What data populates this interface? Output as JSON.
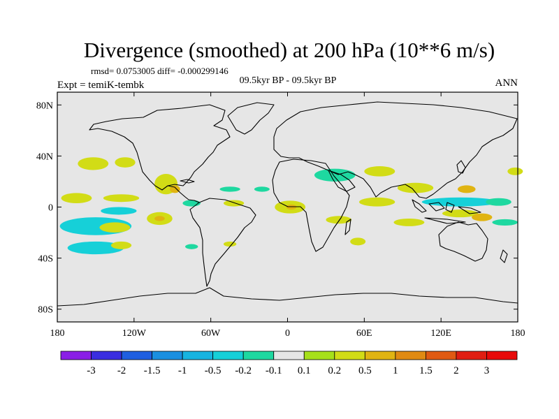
{
  "chart_data": {
    "type": "heatmap",
    "projection": "cylindrical-equidistant",
    "title": "Divergence (smoothed) at 200 hPa (10**6 m/s)",
    "stats": "rmsd= 0.0753005 diff= -0.000299146",
    "experiment": "Expt = temiK-tembk",
    "period": "09.5kyr BP - 09.5kyr BP",
    "season": "ANN",
    "lon_range": [
      -180,
      180
    ],
    "lat_range": [
      -90,
      90
    ],
    "x_ticks": [
      {
        "value": -180,
        "label": "180"
      },
      {
        "value": -120,
        "label": "120W"
      },
      {
        "value": -60,
        "label": "60W"
      },
      {
        "value": 0,
        "label": "0"
      },
      {
        "value": 60,
        "label": "60E"
      },
      {
        "value": 120,
        "label": "120E"
      },
      {
        "value": 180,
        "label": "180"
      }
    ],
    "y_ticks": [
      {
        "value": 80,
        "label": "80N"
      },
      {
        "value": 40,
        "label": "40N"
      },
      {
        "value": 0,
        "label": "0"
      },
      {
        "value": -40,
        "label": "40S"
      },
      {
        "value": -80,
        "label": "80S"
      }
    ],
    "colorbar": {
      "levels": [
        "-3",
        "-2",
        "-1.5",
        "-1",
        "-0.5",
        "-0.2",
        "-0.1",
        "0.1",
        "0.2",
        "0.5",
        "1",
        "1.5",
        "2",
        "3"
      ],
      "colors": [
        "#8a1ee6",
        "#3a2ee0",
        "#1f5fe0",
        "#1a8fe0",
        "#17b4e0",
        "#16d0d8",
        "#1ed8a0",
        "#e6e6e6",
        "#a6e01a",
        "#d2dc16",
        "#e0b412",
        "#e08a12",
        "#e05a12",
        "#e01e12",
        "#e80a0a"
      ]
    },
    "background_color": "#e6e6e6",
    "regions": [
      {
        "lon": -152,
        "lat": 34,
        "rlon": 12,
        "rlat": 5,
        "value": 0.2
      },
      {
        "lon": -127,
        "lat": 35,
        "rlon": 8,
        "rlat": 4,
        "value": 0.2
      },
      {
        "lon": -95,
        "lat": 18,
        "rlon": 9,
        "rlat": 8,
        "value": 0.2
      },
      {
        "lon": -88,
        "lat": 14,
        "rlon": 4,
        "rlat": 3,
        "value": 0.5
      },
      {
        "lon": -165,
        "lat": 7,
        "rlon": 12,
        "rlat": 4,
        "value": 0.2
      },
      {
        "lon": -130,
        "lat": 7,
        "rlon": 14,
        "rlat": 3,
        "value": 0.2
      },
      {
        "lon": -45,
        "lat": 14,
        "rlon": 8,
        "rlat": 2,
        "value": -0.2
      },
      {
        "lon": -20,
        "lat": 14,
        "rlon": 6,
        "rlat": 2,
        "value": -0.2
      },
      {
        "lon": -75,
        "lat": 3,
        "rlon": 7,
        "rlat": 2.5,
        "value": -0.2
      },
      {
        "lon": -42,
        "lat": 3,
        "rlon": 8,
        "rlat": 2.5,
        "value": 0.2
      },
      {
        "lon": -132,
        "lat": -3,
        "rlon": 14,
        "rlat": 3,
        "value": -0.5
      },
      {
        "lon": -100,
        "lat": -9,
        "rlon": 10,
        "rlat": 5,
        "value": 0.2
      },
      {
        "lon": -100,
        "lat": -9,
        "rlon": 4,
        "rlat": 2,
        "value": 0.5
      },
      {
        "lon": -150,
        "lat": -15,
        "rlon": 28,
        "rlat": 7,
        "value": -0.5
      },
      {
        "lon": -135,
        "lat": -16,
        "rlon": 12,
        "rlat": 4,
        "value": 0.2
      },
      {
        "lon": -150,
        "lat": -32,
        "rlon": 22,
        "rlat": 5,
        "value": -0.5
      },
      {
        "lon": -130,
        "lat": -30,
        "rlon": 8,
        "rlat": 3,
        "value": 0.2
      },
      {
        "lon": -75,
        "lat": -31,
        "rlon": 5,
        "rlat": 2,
        "value": -0.2
      },
      {
        "lon": -45,
        "lat": -29,
        "rlon": 5,
        "rlat": 2,
        "value": 0.2
      },
      {
        "lon": 2,
        "lat": 0,
        "rlon": 12,
        "rlat": 5,
        "value": 0.2
      },
      {
        "lon": 3,
        "lat": 0,
        "rlon": 4,
        "rlat": 2,
        "value": 0.5
      },
      {
        "lon": 37,
        "lat": 25,
        "rlon": 16,
        "rlat": 5,
        "value": -0.2
      },
      {
        "lon": 72,
        "lat": 28,
        "rlon": 12,
        "rlat": 4,
        "value": 0.2
      },
      {
        "lon": 70,
        "lat": 4,
        "rlon": 14,
        "rlat": 3.5,
        "value": 0.2
      },
      {
        "lon": 40,
        "lat": -10,
        "rlon": 10,
        "rlat": 3,
        "value": 0.2
      },
      {
        "lon": 55,
        "lat": -27,
        "rlon": 6,
        "rlat": 3,
        "value": 0.2
      },
      {
        "lon": 100,
        "lat": 15,
        "rlon": 14,
        "rlat": 4,
        "value": 0.2
      },
      {
        "lon": 140,
        "lat": 14,
        "rlon": 7,
        "rlat": 3,
        "value": 0.5
      },
      {
        "lon": 135,
        "lat": 4,
        "rlon": 30,
        "rlat": 3.5,
        "value": -0.5
      },
      {
        "lon": 165,
        "lat": 4,
        "rlon": 10,
        "rlat": 3,
        "value": -0.2
      },
      {
        "lon": 95,
        "lat": -12,
        "rlon": 12,
        "rlat": 3,
        "value": 0.2
      },
      {
        "lon": 135,
        "lat": -5,
        "rlon": 14,
        "rlat": 3,
        "value": 0.2
      },
      {
        "lon": 152,
        "lat": -8,
        "rlon": 8,
        "rlat": 3,
        "value": 0.5
      },
      {
        "lon": 178,
        "lat": 28,
        "rlon": 6,
        "rlat": 3,
        "value": 0.2
      },
      {
        "lon": 170,
        "lat": -12,
        "rlon": 10,
        "rlat": 2.5,
        "value": -0.2
      }
    ]
  }
}
